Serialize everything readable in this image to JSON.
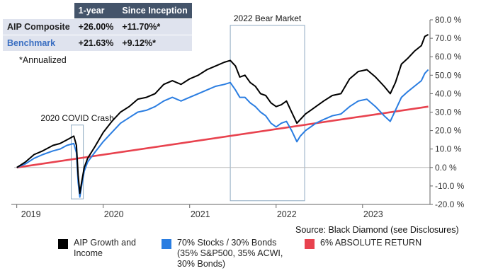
{
  "table": {
    "headers": [
      "",
      "1-year",
      "Since Inception"
    ],
    "rows": [
      {
        "label": "AIP Composite",
        "one_year": "+26.00%",
        "since_inception": "+11.70%*"
      },
      {
        "label": "Benchmark",
        "one_year": "+21.63%",
        "since_inception": "+9.12%*"
      }
    ]
  },
  "note": "*Annualized",
  "source": "Source: Black Diamond (see Disclosures)",
  "colors": {
    "aip": "#000000",
    "benchmark": "#2a7de1",
    "absolute": "#e8424e",
    "axis": "#666666",
    "box": "#8ea9c1",
    "header_bg": "#44546a",
    "cell_bg": "#dfe3ee"
  },
  "chart_data": {
    "type": "line",
    "x_ticks": [
      "2019",
      "2020",
      "2021",
      "2022",
      "2023"
    ],
    "y_ticks": [
      "80.0 %",
      "70.0 %",
      "60.0 %",
      "50.0 %",
      "40.0 %",
      "30.0 %",
      "20.0 %",
      "10.0 %",
      "0.0 %",
      "-10.0 %",
      "-20.0 %"
    ],
    "ylim": [
      -20,
      80
    ],
    "xlim": [
      2018.97,
      2023.78
    ],
    "grid": false,
    "annotations": [
      {
        "text": "2020 COVID Crash",
        "x_range": [
          2019.63,
          2019.77
        ],
        "y_range": [
          -17,
          23
        ]
      },
      {
        "text": "2022 Bear Market",
        "x_range": [
          2021.47,
          2022.33
        ],
        "y_range": [
          -18,
          77
        ]
      }
    ],
    "series": [
      {
        "name": "AIP Growth and Income",
        "x": [
          2019.0,
          2019.1,
          2019.2,
          2019.3,
          2019.42,
          2019.5,
          2019.58,
          2019.66,
          2019.69,
          2019.71,
          2019.73,
          2019.75,
          2019.78,
          2019.82,
          2019.9,
          2020.0,
          2020.1,
          2020.2,
          2020.3,
          2020.4,
          2020.5,
          2020.6,
          2020.7,
          2020.8,
          2020.9,
          2021.0,
          2021.1,
          2021.2,
          2021.3,
          2021.4,
          2021.47,
          2021.53,
          2021.58,
          2021.64,
          2021.7,
          2021.76,
          2021.82,
          2021.88,
          2021.94,
          2022.0,
          2022.06,
          2022.12,
          2022.18,
          2022.24,
          2022.28,
          2022.34,
          2022.4,
          2022.46,
          2022.55,
          2022.65,
          2022.75,
          2022.85,
          2022.95,
          2023.05,
          2023.15,
          2023.25,
          2023.32,
          2023.38,
          2023.45,
          2023.52,
          2023.6,
          2023.68,
          2023.72,
          2023.76
        ],
        "values": [
          0,
          3,
          7,
          9,
          12,
          13,
          15,
          17,
          12,
          -4,
          -14,
          -8,
          0,
          5,
          11,
          19,
          25,
          30,
          33,
          37,
          38,
          40,
          45,
          47,
          45,
          48,
          50,
          53,
          55,
          57,
          58,
          55,
          49,
          50,
          46,
          44,
          40,
          39,
          35,
          33,
          34,
          36,
          30,
          24,
          26,
          29,
          31,
          33,
          36,
          39,
          40,
          48,
          52,
          53,
          49,
          44,
          40,
          46,
          56,
          59,
          63,
          66,
          71,
          72
        ]
      },
      {
        "name": "70% Stocks / 30% Bonds (35% S&P500, 35% ACWI, 30% Bonds)",
        "x": [
          2019.0,
          2019.1,
          2019.2,
          2019.3,
          2019.42,
          2019.5,
          2019.58,
          2019.66,
          2019.69,
          2019.71,
          2019.73,
          2019.75,
          2019.78,
          2019.82,
          2019.9,
          2020.0,
          2020.1,
          2020.2,
          2020.3,
          2020.4,
          2020.5,
          2020.6,
          2020.7,
          2020.8,
          2020.9,
          2021.0,
          2021.1,
          2021.2,
          2021.3,
          2021.4,
          2021.47,
          2021.53,
          2021.58,
          2021.64,
          2021.7,
          2021.76,
          2021.82,
          2021.88,
          2021.94,
          2022.0,
          2022.06,
          2022.12,
          2022.18,
          2022.24,
          2022.28,
          2022.34,
          2022.4,
          2022.46,
          2022.55,
          2022.65,
          2022.75,
          2022.85,
          2022.95,
          2023.05,
          2023.15,
          2023.25,
          2023.32,
          2023.38,
          2023.45,
          2023.52,
          2023.6,
          2023.68,
          2023.72,
          2023.76
        ],
        "values": [
          0,
          2,
          5,
          7,
          9,
          10,
          12,
          13,
          8,
          -8,
          -16,
          -10,
          -2,
          3,
          8,
          14,
          19,
          24,
          27,
          30,
          31,
          33,
          36,
          38,
          36,
          38,
          40,
          42,
          44,
          45,
          46,
          42,
          38,
          38,
          35,
          33,
          30,
          28,
          24,
          22,
          24,
          25,
          20,
          14,
          17,
          20,
          22,
          24,
          26,
          28,
          29,
          33,
          36,
          37,
          33,
          28,
          25,
          31,
          38,
          41,
          44,
          47,
          51,
          53
        ]
      },
      {
        "name": "6% ABSOLUTE RETURN",
        "x": [
          2019.0,
          2023.76
        ],
        "values": [
          0,
          33
        ]
      }
    ]
  }
}
